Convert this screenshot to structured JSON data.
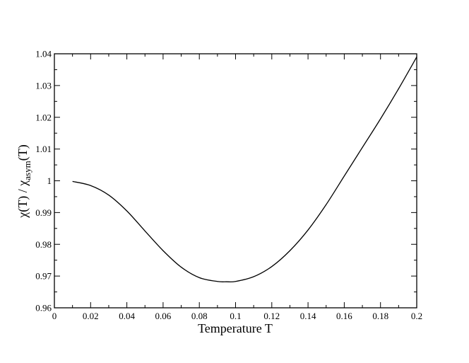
{
  "chart_data": {
    "type": "line",
    "xlabel": "Temperature  T",
    "ylabel": {
      "prefix": "χ(T) / χ",
      "subscript": "asym",
      "suffix": "(T)"
    },
    "xlim": [
      0,
      0.2
    ],
    "ylim": [
      0.96,
      1.04
    ],
    "x_ticks": [
      0,
      0.02,
      0.04,
      0.06,
      0.08,
      0.1,
      0.12,
      0.14,
      0.16,
      0.18,
      0.2
    ],
    "x_tick_labels": [
      "0",
      "0.02",
      "0.04",
      "0.06",
      "0.08",
      "0.1",
      "0.12",
      "0.14",
      "0.16",
      "0.18",
      "0.2"
    ],
    "y_ticks": [
      0.96,
      0.97,
      0.98,
      0.99,
      1,
      1.01,
      1.02,
      1.03,
      1.04
    ],
    "y_tick_labels": [
      "0.96",
      "0.97",
      "0.98",
      "0.99",
      "1",
      "1.01",
      "1.02",
      "1.03",
      "1.04"
    ],
    "grid": false,
    "legend": "none",
    "series": [
      {
        "color": "#000000",
        "x": [
          0.01,
          0.02,
          0.03,
          0.04,
          0.05,
          0.06,
          0.07,
          0.08,
          0.09,
          0.095,
          0.1,
          0.11,
          0.12,
          0.13,
          0.14,
          0.15,
          0.16,
          0.17,
          0.18,
          0.19,
          0.2
        ],
        "y": [
          0.9998,
          0.9985,
          0.9955,
          0.9905,
          0.9842,
          0.978,
          0.9728,
          0.9695,
          0.9683,
          0.9682,
          0.9683,
          0.9698,
          0.973,
          0.978,
          0.9845,
          0.9925,
          1.0015,
          1.0105,
          1.0195,
          1.029,
          1.039
        ]
      }
    ]
  }
}
